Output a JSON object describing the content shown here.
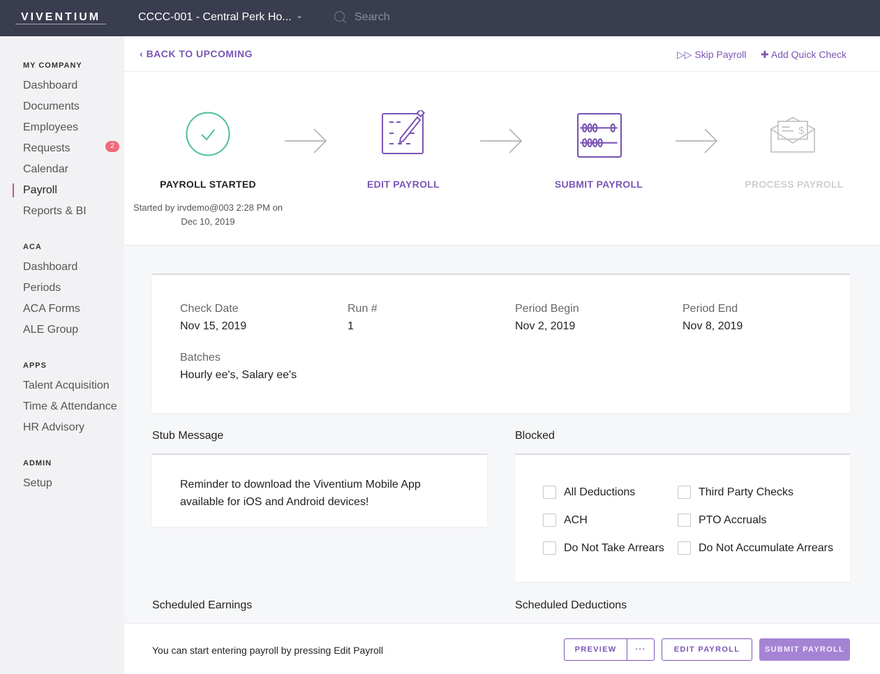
{
  "header": {
    "logo": "VIVENTIUM",
    "company": "CCCC-001 - Central Perk Ho...",
    "search_placeholder": "Search"
  },
  "sidebar": {
    "sections": [
      {
        "title": "MY COMPANY",
        "items": [
          "Dashboard",
          "Documents",
          "Employees",
          "Requests",
          "Calendar",
          "Payroll",
          "Reports & BI"
        ]
      },
      {
        "title": "ACA",
        "items": [
          "Dashboard",
          "Periods",
          "ACA Forms",
          "ALE Group"
        ]
      },
      {
        "title": "APPS",
        "items": [
          "Talent Acquisition",
          "Time & Attendance",
          "HR Advisory"
        ]
      },
      {
        "title": "ADMIN",
        "items": [
          "Setup"
        ]
      }
    ],
    "requests_badge": "2",
    "active": "Payroll"
  },
  "topbar": {
    "back": "BACK TO UPCOMING",
    "skip": "Skip Payroll",
    "add_quick_check": "Add Quick Check"
  },
  "steps": [
    {
      "label": "PAYROLL STARTED",
      "sub1": "Started by irvdemo@003 2:28 PM on",
      "sub2": "Dec 10, 2019",
      "state": "done"
    },
    {
      "label": "EDIT PAYROLL",
      "state": "active"
    },
    {
      "label": "SUBMIT PAYROLL",
      "state": "active"
    },
    {
      "label": "PROCESS PAYROLL",
      "state": "disabled"
    }
  ],
  "details": {
    "check_date_label": "Check Date",
    "check_date": "Nov 15, 2019",
    "run_label": "Run #",
    "run": "1",
    "period_begin_label": "Period Begin",
    "period_begin": "Nov 2, 2019",
    "period_end_label": "Period End",
    "period_end": "Nov 8, 2019",
    "batches_label": "Batches",
    "batches": "Hourly ee's, Salary ee's"
  },
  "stub": {
    "title": "Stub Message",
    "line1": "Reminder to download the Viventium Mobile App",
    "line2": "available for iOS and Android devices!"
  },
  "blocked": {
    "title": "Blocked",
    "options": [
      {
        "label": "All Deductions",
        "checked": false
      },
      {
        "label": "Third Party Checks",
        "checked": false
      },
      {
        "label": "ACH",
        "checked": false
      },
      {
        "label": "PTO Accruals",
        "checked": false
      },
      {
        "label": "Do Not Take Arrears",
        "checked": false
      },
      {
        "label": "Do Not Accumulate Arrears",
        "checked": false
      }
    ]
  },
  "scheduled": {
    "earnings": "Scheduled Earnings",
    "deductions": "Scheduled Deductions"
  },
  "footer": {
    "message": "You can start entering payroll by pressing Edit Payroll",
    "preview": "PREVIEW",
    "more": "···",
    "edit": "EDIT PAYROLL",
    "submit": "SUBMIT PAYROLL"
  },
  "colors": {
    "accent": "#7b55b5",
    "success": "#4dbf9a",
    "header": "#3a3d4f",
    "badge": "#ef6b7a"
  }
}
